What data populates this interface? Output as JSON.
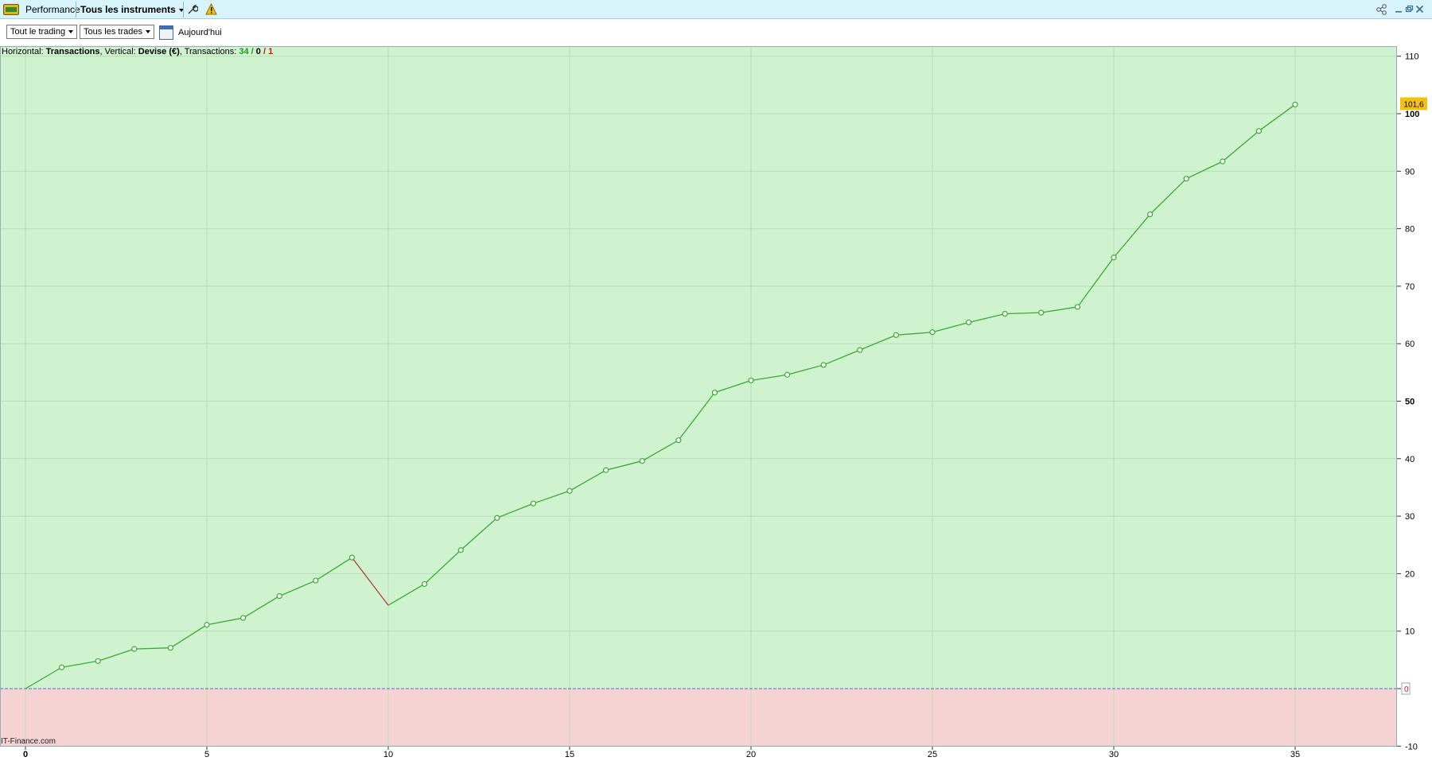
{
  "window": {
    "app_title": "Performance",
    "instrument_selector": "Tous les instruments",
    "icons": [
      "bars-logo-icon",
      "wrench-icon",
      "warning-icon",
      "share-icon",
      "minimize-icon",
      "restore-icon",
      "close-icon"
    ]
  },
  "toolbar": {
    "trading_filter": "Tout le trading",
    "trades_filter": "Tous les trades",
    "date_label": "Aujourd'hui"
  },
  "info": {
    "horizontal_prefix": "Horizontal: ",
    "horizontal_value": "Transactions",
    "vertical_prefix": ", Vertical: ",
    "vertical_value": "Devise (€)",
    "transactions_prefix": ", Transactions: ",
    "tx_win": "34",
    "slash1": " / ",
    "tx_flat": "0",
    "slash2": " / ",
    "tx_loss": "1"
  },
  "watermark": "IT-Finance.com",
  "chart_data": {
    "type": "line",
    "x": [
      0,
      1,
      2,
      3,
      4,
      5,
      6,
      7,
      8,
      9,
      10,
      11,
      12,
      13,
      14,
      15,
      16,
      17,
      18,
      19,
      20,
      21,
      22,
      23,
      24,
      25,
      26,
      27,
      28,
      29,
      30,
      31,
      32,
      33,
      34,
      35
    ],
    "values": [
      0,
      3.7,
      4.8,
      6.9,
      7.1,
      11.1,
      12.3,
      16.1,
      18.8,
      22.8,
      14.5,
      18.2,
      24.1,
      29.7,
      32.2,
      34.4,
      38.0,
      39.6,
      43.2,
      51.5,
      53.6,
      54.6,
      56.3,
      58.9,
      61.5,
      62.0,
      63.7,
      65.2,
      65.4,
      66.4,
      75.0,
      82.5,
      88.7,
      91.7,
      97.0,
      101.6
    ],
    "xlim": [
      0,
      38
    ],
    "ylim": [
      -10,
      110
    ],
    "x_ticks": [
      0,
      5,
      10,
      15,
      20,
      25,
      30,
      35
    ],
    "y_ticks": [
      -10,
      0,
      10,
      20,
      30,
      40,
      50,
      60,
      70,
      80,
      90,
      100,
      110
    ],
    "bold_y_ticks": [
      50,
      100
    ],
    "bold_x_ticks": [
      0
    ],
    "last_value_label": "101,6",
    "zero_label": "0",
    "colors": {
      "positive_bg": "#cff3cf",
      "negative_bg": "#f5d3d3",
      "up_line": "#3aaa35",
      "down_line": "#b53a3a",
      "zero_line": "#6666cc",
      "last_badge": "#f2c20f",
      "grid": "#b9dcb9"
    }
  }
}
